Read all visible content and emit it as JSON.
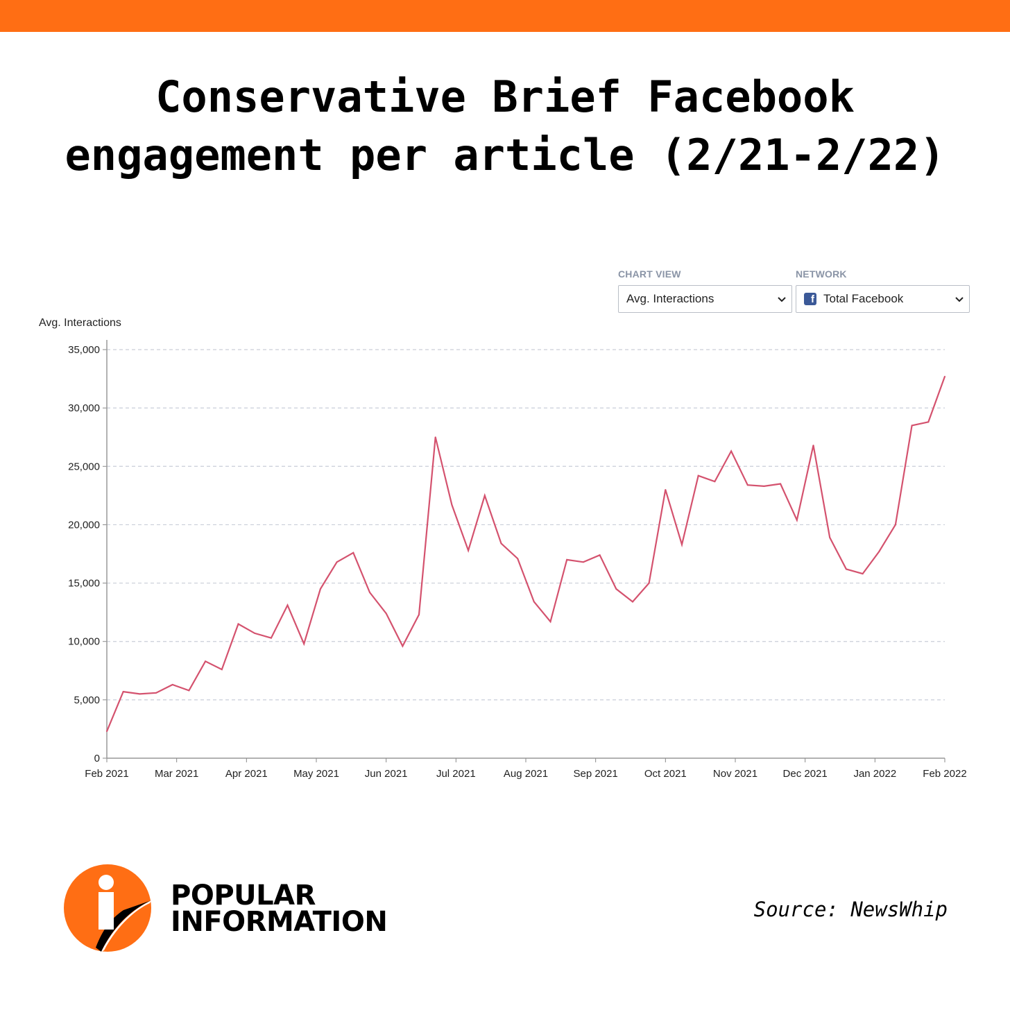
{
  "header": {
    "title_line1": "Conservative Brief Facebook",
    "title_line2": "engagement per article (2/21-2/22)"
  },
  "controls": {
    "chart_view_label": "CHART VIEW",
    "chart_view_value": "Avg. Interactions",
    "network_label": "NETWORK",
    "network_value": "Total Facebook",
    "network_icon": "f"
  },
  "chart_data": {
    "type": "line",
    "title": "",
    "ylabel": "Avg. Interactions",
    "xlabel": "",
    "ylim": [
      0,
      35000
    ],
    "yticks": [
      0,
      5000,
      10000,
      15000,
      20000,
      25000,
      30000,
      35000
    ],
    "ytick_labels": [
      "0",
      "5,000",
      "10,000",
      "15,000",
      "20,000",
      "25,000",
      "30,000",
      "35,000"
    ],
    "xtick_labels": [
      "Feb 2021",
      "Mar 2021",
      "Apr 2021",
      "May 2021",
      "Jun 2021",
      "Jul 2021",
      "Aug 2021",
      "Sep 2021",
      "Oct 2021",
      "Nov 2021",
      "Dec 2021",
      "Jan 2022",
      "Feb 2022"
    ],
    "grid": true,
    "line_color": "#d4526e",
    "series": [
      {
        "name": "Avg. Interactions",
        "values": [
          2300,
          5700,
          5500,
          5600,
          6300,
          5800,
          8300,
          7600,
          11500,
          10700,
          10300,
          13100,
          9800,
          14500,
          16800,
          17600,
          14200,
          12400,
          9600,
          12300,
          27500,
          21700,
          17800,
          22500,
          18400,
          17100,
          13400,
          11700,
          17000,
          16800,
          17400,
          14500,
          13400,
          15000,
          23000,
          18300,
          24200,
          23700,
          26300,
          23400,
          23300,
          23500,
          20400,
          26800,
          18900,
          16200,
          15800,
          17700,
          20000,
          28500,
          28800,
          32700
        ]
      }
    ]
  },
  "footer": {
    "brand_line1": "POPULAR",
    "brand_line2": "INFORMATION",
    "source": "Source: NewsWhip",
    "brand_color": "#ff6e14"
  }
}
